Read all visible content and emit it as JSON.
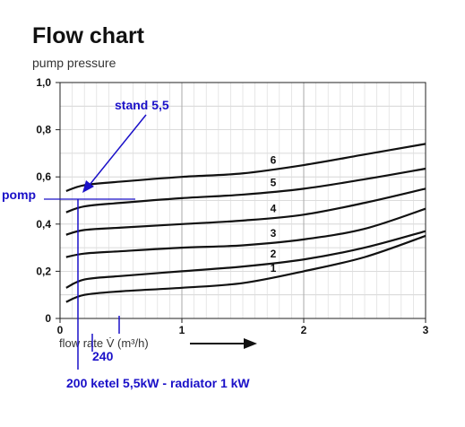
{
  "header": {
    "title": "Flow chart",
    "subtitle": "pump pressure"
  },
  "chart_data": {
    "type": "line",
    "title": "Flow chart",
    "ylabel": "pump pressure",
    "xlabel": "flow rate V̇ (m³/h)",
    "xlim": [
      0,
      3
    ],
    "ylim": [
      0,
      1.0
    ],
    "grid": true,
    "x_ticks": [
      {
        "value": 0,
        "label": "0"
      },
      {
        "value": 1,
        "label": "1"
      },
      {
        "value": 2,
        "label": "2"
      },
      {
        "value": 3,
        "label": "3"
      }
    ],
    "y_ticks": [
      {
        "value": 0,
        "label": "0"
      },
      {
        "value": 0.2,
        "label": "0,2"
      },
      {
        "value": 0.4,
        "label": "0,4"
      },
      {
        "value": 0.6,
        "label": "0,6"
      },
      {
        "value": 0.8,
        "label": "0,8"
      },
      {
        "value": 1.0,
        "label": "1,0"
      }
    ],
    "series": [
      {
        "name": "1",
        "x": [
          0.05,
          0.2,
          0.5,
          1.0,
          1.5,
          2.0,
          2.5,
          3.0
        ],
        "y": [
          0.07,
          0.1,
          0.115,
          0.13,
          0.15,
          0.2,
          0.26,
          0.35
        ]
      },
      {
        "name": "2",
        "x": [
          0.05,
          0.2,
          0.5,
          1.0,
          1.5,
          2.0,
          2.5,
          3.0
        ],
        "y": [
          0.13,
          0.165,
          0.18,
          0.2,
          0.22,
          0.25,
          0.3,
          0.37
        ]
      },
      {
        "name": "3",
        "x": [
          0.05,
          0.2,
          0.5,
          1.0,
          1.5,
          2.0,
          2.5,
          3.0
        ],
        "y": [
          0.26,
          0.275,
          0.285,
          0.3,
          0.31,
          0.335,
          0.38,
          0.465
        ]
      },
      {
        "name": "4",
        "x": [
          0.05,
          0.2,
          0.5,
          1.0,
          1.5,
          2.0,
          2.5,
          3.0
        ],
        "y": [
          0.355,
          0.375,
          0.385,
          0.4,
          0.415,
          0.44,
          0.49,
          0.55
        ]
      },
      {
        "name": "5",
        "x": [
          0.05,
          0.2,
          0.5,
          1.0,
          1.5,
          2.0,
          2.5,
          3.0
        ],
        "y": [
          0.45,
          0.475,
          0.49,
          0.51,
          0.525,
          0.55,
          0.59,
          0.635
        ]
      },
      {
        "name": "6",
        "x": [
          0.05,
          0.2,
          0.5,
          1.0,
          1.5,
          2.0,
          2.5,
          3.0
        ],
        "y": [
          0.54,
          0.565,
          0.58,
          0.6,
          0.615,
          0.65,
          0.695,
          0.74
        ]
      }
    ],
    "annotations": {
      "stand": "stand 5,5",
      "pomp": "pomp",
      "label_240": "240",
      "footer": "200 ketel 5,5kW - radiator 1 kW"
    },
    "annotation_color": "#1a10c8"
  }
}
